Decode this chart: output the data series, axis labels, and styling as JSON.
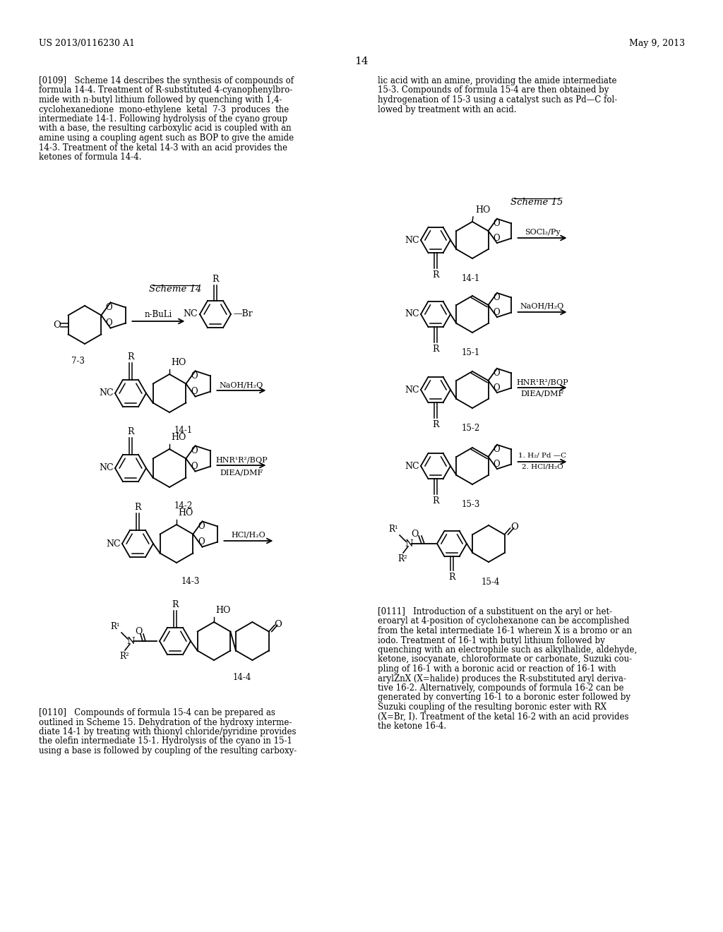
{
  "header_left": "US 2013/0116230 A1",
  "header_right": "May 9, 2013",
  "page_num": "14",
  "bg": "#ffffff",
  "fg": "#000000",
  "left_para1": [
    "[0109]   Scheme 14 describes the synthesis of compounds of",
    "formula 14-4. Treatment of R-substituted 4-cyanophenylbro-",
    "mide with n-butyl lithium followed by quenching with 1,4-",
    "cyclohexanedione  mono-ethylene  ketal  7-3  produces  the",
    "intermediate 14-1. Following hydrolysis of the cyano group",
    "with a base, the resulting carboxylic acid is coupled with an",
    "amine using a coupling agent such as BOP to give the amide",
    "14-3. Treatment of the ketal 14-3 with an acid provides the",
    "ketones of formula 14-4."
  ],
  "right_para1": [
    "lic acid with an amine, providing the amide intermediate",
    "15-3. Compounds of formula 15-4 are then obtained by",
    "hydrogenation of 15-3 using a catalyst such as Pd—C fol-",
    "lowed by treatment with an acid."
  ],
  "left_para2": [
    "[0110]   Compounds of formula 15-4 can be prepared as",
    "outlined in Scheme 15. Dehydration of the hydroxy interme-",
    "diate 14-1 by treating with thionyl chloride/pyridine provides",
    "the olefin intermediate 15-1. Hydrolysis of the cyano in 15-1",
    "using a base is followed by coupling of the resulting carboxy-"
  ],
  "right_para2": [
    "[0111]   Introduction of a substituent on the aryl or het-",
    "eroaryl at 4-position of cyclohexanone can be accomplished",
    "from the ketal intermediate 16-1 wherein X is a bromo or an",
    "iodo. Treatment of 16-1 with butyl lithium followed by",
    "quenching with an electrophile such as alkylhalide, aldehyde,",
    "ketone, isocyanate, chloroformate or carbonate, Suzuki cou-",
    "pling of 16-1 with a boronic acid or reaction of 16-1 with",
    "arylZnX (X=halide) produces the R-substituted aryl deriva-",
    "tive 16-2. Alternatively, compounds of formula 16-2 can be",
    "generated by converting 16-1 to a boronic ester followed by",
    "Suzuki coupling of the resulting boronic ester with RX",
    "(X=Br, I). Treatment of the ketal 16-2 with an acid provides",
    "the ketone 16-4."
  ]
}
